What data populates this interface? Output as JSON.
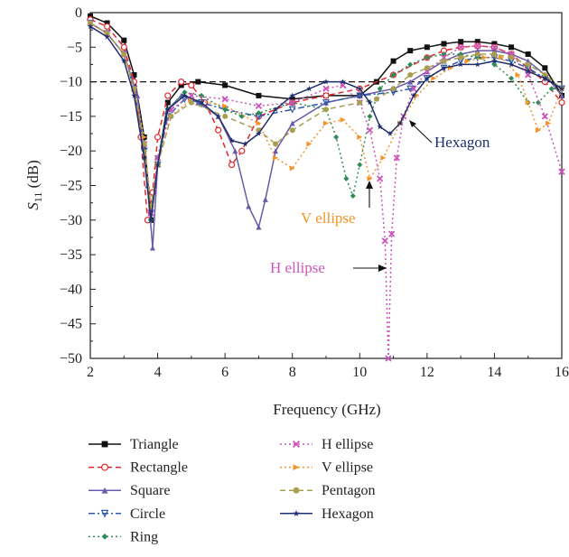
{
  "chart_data": {
    "type": "line",
    "xlabel": "Frequency (GHz)",
    "ylabel_main": "S",
    "ylabel_sub": "11",
    "ylabel_unit": " (dB)",
    "xlim": [
      2,
      16
    ],
    "ylim": [
      -50,
      0
    ],
    "xticks": [
      2,
      4,
      6,
      8,
      10,
      12,
      14,
      16
    ],
    "yticks": [
      0,
      -5,
      -10,
      -15,
      -20,
      -25,
      -30,
      -35,
      -40,
      -45,
      -50
    ],
    "xtick_labels": [
      "2",
      "4",
      "6",
      "8",
      "10",
      "12",
      "14",
      "16"
    ],
    "ytick_labels": [
      "0",
      "−5",
      "−10",
      "−15",
      "−20",
      "−25",
      "−30",
      "−35",
      "−40",
      "−45",
      "−50"
    ],
    "reference_line": -10,
    "series": [
      {
        "name": "Triangle",
        "color": "#111111",
        "dash": "solid",
        "marker": "square",
        "x": [
          2,
          2.5,
          3,
          3.3,
          3.6,
          3.8,
          4.0,
          4.3,
          4.7,
          5.2,
          6,
          7,
          8,
          9,
          10,
          10.5,
          11,
          11.5,
          12,
          12.5,
          13,
          13.5,
          14,
          14.5,
          15,
          15.5,
          16
        ],
        "y": [
          -0.5,
          -1.5,
          -4,
          -9,
          -18,
          -30,
          -22,
          -13,
          -10.5,
          -10,
          -10.5,
          -12,
          -12.5,
          -12,
          -12,
          -10,
          -7,
          -5.5,
          -5,
          -4.5,
          -4.2,
          -4.2,
          -4.5,
          -5,
          -6,
          -8,
          -12
        ]
      },
      {
        "name": "Rectangle",
        "color": "#e0282c",
        "dash": "dashed",
        "marker": "circle",
        "x": [
          2,
          2.5,
          3,
          3.3,
          3.5,
          3.7,
          3.85,
          4.0,
          4.3,
          4.7,
          5.0,
          5.4,
          5.8,
          6.2,
          6.5,
          7,
          8,
          9,
          10,
          11,
          12,
          12.5,
          13,
          13.5,
          14,
          14.5,
          15,
          15.5,
          16
        ],
        "y": [
          -1,
          -2,
          -5,
          -10,
          -18,
          -30,
          -26,
          -18,
          -12,
          -10,
          -10.5,
          -13,
          -17,
          -22,
          -20,
          -15,
          -13,
          -12,
          -11,
          -9,
          -6.5,
          -5.5,
          -5,
          -4.8,
          -5,
          -6,
          -8,
          -10,
          -13
        ]
      },
      {
        "name": "Square",
        "color": "#6a5aa8",
        "dash": "solid",
        "marker": "triangle-up",
        "x": [
          2,
          2.5,
          3,
          3.4,
          3.7,
          3.85,
          4.0,
          4.3,
          4.7,
          5.2,
          5.8,
          6.3,
          6.7,
          7.0,
          7.2,
          7.5,
          8,
          9,
          10,
          11,
          11.5,
          12,
          12.5,
          13,
          13.5,
          14,
          14.5,
          15,
          15.5,
          16
        ],
        "y": [
          -1.5,
          -3,
          -6,
          -12,
          -25,
          -34,
          -22,
          -14,
          -12,
          -13,
          -15,
          -20,
          -28,
          -31,
          -27,
          -20,
          -16,
          -13,
          -12,
          -11,
          -10,
          -8.5,
          -7,
          -6,
          -5.5,
          -5.5,
          -6,
          -7,
          -9,
          -12
        ]
      },
      {
        "name": "Circle",
        "color": "#2c5aa8",
        "dash": "dashdot",
        "marker": "triangle-down",
        "x": [
          2,
          2.5,
          3,
          3.3,
          3.6,
          3.8,
          4.0,
          4.3,
          4.8,
          5.3,
          6,
          7,
          8,
          9,
          10,
          11,
          11.5,
          12,
          12.5,
          13,
          13.5,
          14,
          14.5,
          15,
          15.5,
          16
        ],
        "y": [
          -1.5,
          -3,
          -6,
          -11,
          -20,
          -29,
          -22,
          -15,
          -12.5,
          -13,
          -14,
          -15,
          -14,
          -13,
          -12,
          -11.5,
          -11,
          -9.5,
          -8,
          -7,
          -6.5,
          -6.5,
          -7,
          -8,
          -9.5,
          -11
        ]
      },
      {
        "name": "Ring",
        "color": "#2e8b57",
        "dash": "dotted",
        "marker": "diamond",
        "x": [
          2,
          2.5,
          3,
          3.3,
          3.6,
          3.8,
          4.0,
          4.3,
          4.8,
          5.3,
          6,
          6.5,
          7,
          8,
          9,
          9.3,
          9.6,
          9.8,
          10.0,
          10.3,
          10.6,
          11,
          11.5,
          12,
          12.5,
          13,
          13.5,
          14,
          14.5,
          15,
          15.3,
          15.7,
          16
        ],
        "y": [
          -1.5,
          -3,
          -6,
          -11,
          -20,
          -30,
          -21,
          -14,
          -11.5,
          -12,
          -14,
          -15,
          -14.5,
          -13,
          -14,
          -18,
          -24,
          -26.5,
          -22,
          -15,
          -11,
          -9,
          -7.5,
          -6.5,
          -6,
          -6,
          -6.5,
          -7.5,
          -9.5,
          -13,
          -13,
          -11,
          -11
        ]
      },
      {
        "name": "H ellipse",
        "color": "#cc55bb",
        "dash": "dotted",
        "marker": "x",
        "x": [
          2,
          2.5,
          3,
          3.3,
          3.6,
          3.8,
          4.0,
          4.4,
          5.0,
          6,
          7,
          8,
          9,
          9.5,
          10,
          10.3,
          10.6,
          10.75,
          10.85,
          10.95,
          11.1,
          11.3,
          11.6,
          12,
          12.5,
          13,
          13.5,
          14,
          14.5,
          15,
          15.5,
          16
        ],
        "y": [
          -1.5,
          -3,
          -6,
          -11,
          -19,
          -29,
          -21,
          -14,
          -12,
          -12.5,
          -13.5,
          -13,
          -11,
          -10.5,
          -13,
          -17,
          -24,
          -33,
          -50,
          -32,
          -21,
          -15,
          -11,
          -8.5,
          -6.5,
          -5,
          -4.8,
          -5,
          -6,
          -9,
          -15,
          -23
        ]
      },
      {
        "name": "V ellipse",
        "color": "#f5932a",
        "dash": "dotted",
        "marker": "triangle-right",
        "x": [
          2,
          2.5,
          3,
          3.3,
          3.6,
          3.8,
          4.0,
          4.4,
          5.0,
          6,
          7,
          7.5,
          8,
          8.5,
          9,
          9.5,
          10,
          10.3,
          10.7,
          11.2,
          11.7,
          12.2,
          12.7,
          13.2,
          13.7,
          14.2,
          14.7,
          15.0,
          15.3,
          15.6,
          16
        ],
        "y": [
          -1.5,
          -3,
          -6,
          -11,
          -18,
          -28,
          -22,
          -15,
          -12.5,
          -13.5,
          -16,
          -21,
          -22.5,
          -19,
          -16,
          -15.5,
          -18,
          -24,
          -21,
          -16,
          -12,
          -9.5,
          -8,
          -7,
          -6.5,
          -6.5,
          -9,
          -13,
          -17,
          -16,
          -11
        ]
      },
      {
        "name": "Pentagon",
        "color": "#a8a050",
        "dash": "dashed",
        "marker": "circle-filled",
        "x": [
          2,
          2.5,
          3,
          3.3,
          3.6,
          3.8,
          4.0,
          4.4,
          5.0,
          6,
          7,
          7.5,
          8,
          9,
          10,
          10.5,
          11,
          11.5,
          12,
          12.5,
          13,
          13.5,
          14,
          14.5,
          15,
          15.5,
          16
        ],
        "y": [
          -1.5,
          -3,
          -6,
          -11,
          -19,
          -28,
          -22,
          -15,
          -13,
          -15,
          -17,
          -19,
          -17,
          -14,
          -13,
          -12.5,
          -11,
          -9,
          -8,
          -7,
          -6.5,
          -6,
          -6,
          -6.5,
          -7.5,
          -9,
          -11
        ]
      },
      {
        "name": "Hexagon",
        "color": "#1f2f6e",
        "dash": "solid",
        "marker": "star",
        "x": [
          2,
          2.5,
          3,
          3.3,
          3.6,
          3.8,
          4.0,
          4.3,
          4.8,
          5.3,
          5.8,
          6.2,
          6.6,
          7,
          7.5,
          8,
          8.5,
          9,
          9.5,
          10,
          10.3,
          10.6,
          10.9,
          11.2,
          11.6,
          12,
          12.5,
          13,
          13.5,
          14,
          14.5,
          15,
          15.5,
          16
        ],
        "y": [
          -2,
          -3.5,
          -7,
          -12,
          -21,
          -30,
          -22,
          -14,
          -12,
          -13,
          -15,
          -18.5,
          -19,
          -17.5,
          -14,
          -12,
          -11,
          -10,
          -10,
          -11,
          -13,
          -16.5,
          -17.5,
          -16,
          -12,
          -9.5,
          -8,
          -7.5,
          -7.5,
          -7,
          -7.5,
          -8.5,
          -9.5,
          -11
        ]
      }
    ],
    "annotations": [
      {
        "text": "Hexagon",
        "color": "#1f2f6e"
      },
      {
        "text": "V ellipse",
        "color": "#f5932a"
      },
      {
        "text": "H ellipse",
        "color": "#cc55bb"
      }
    ]
  }
}
